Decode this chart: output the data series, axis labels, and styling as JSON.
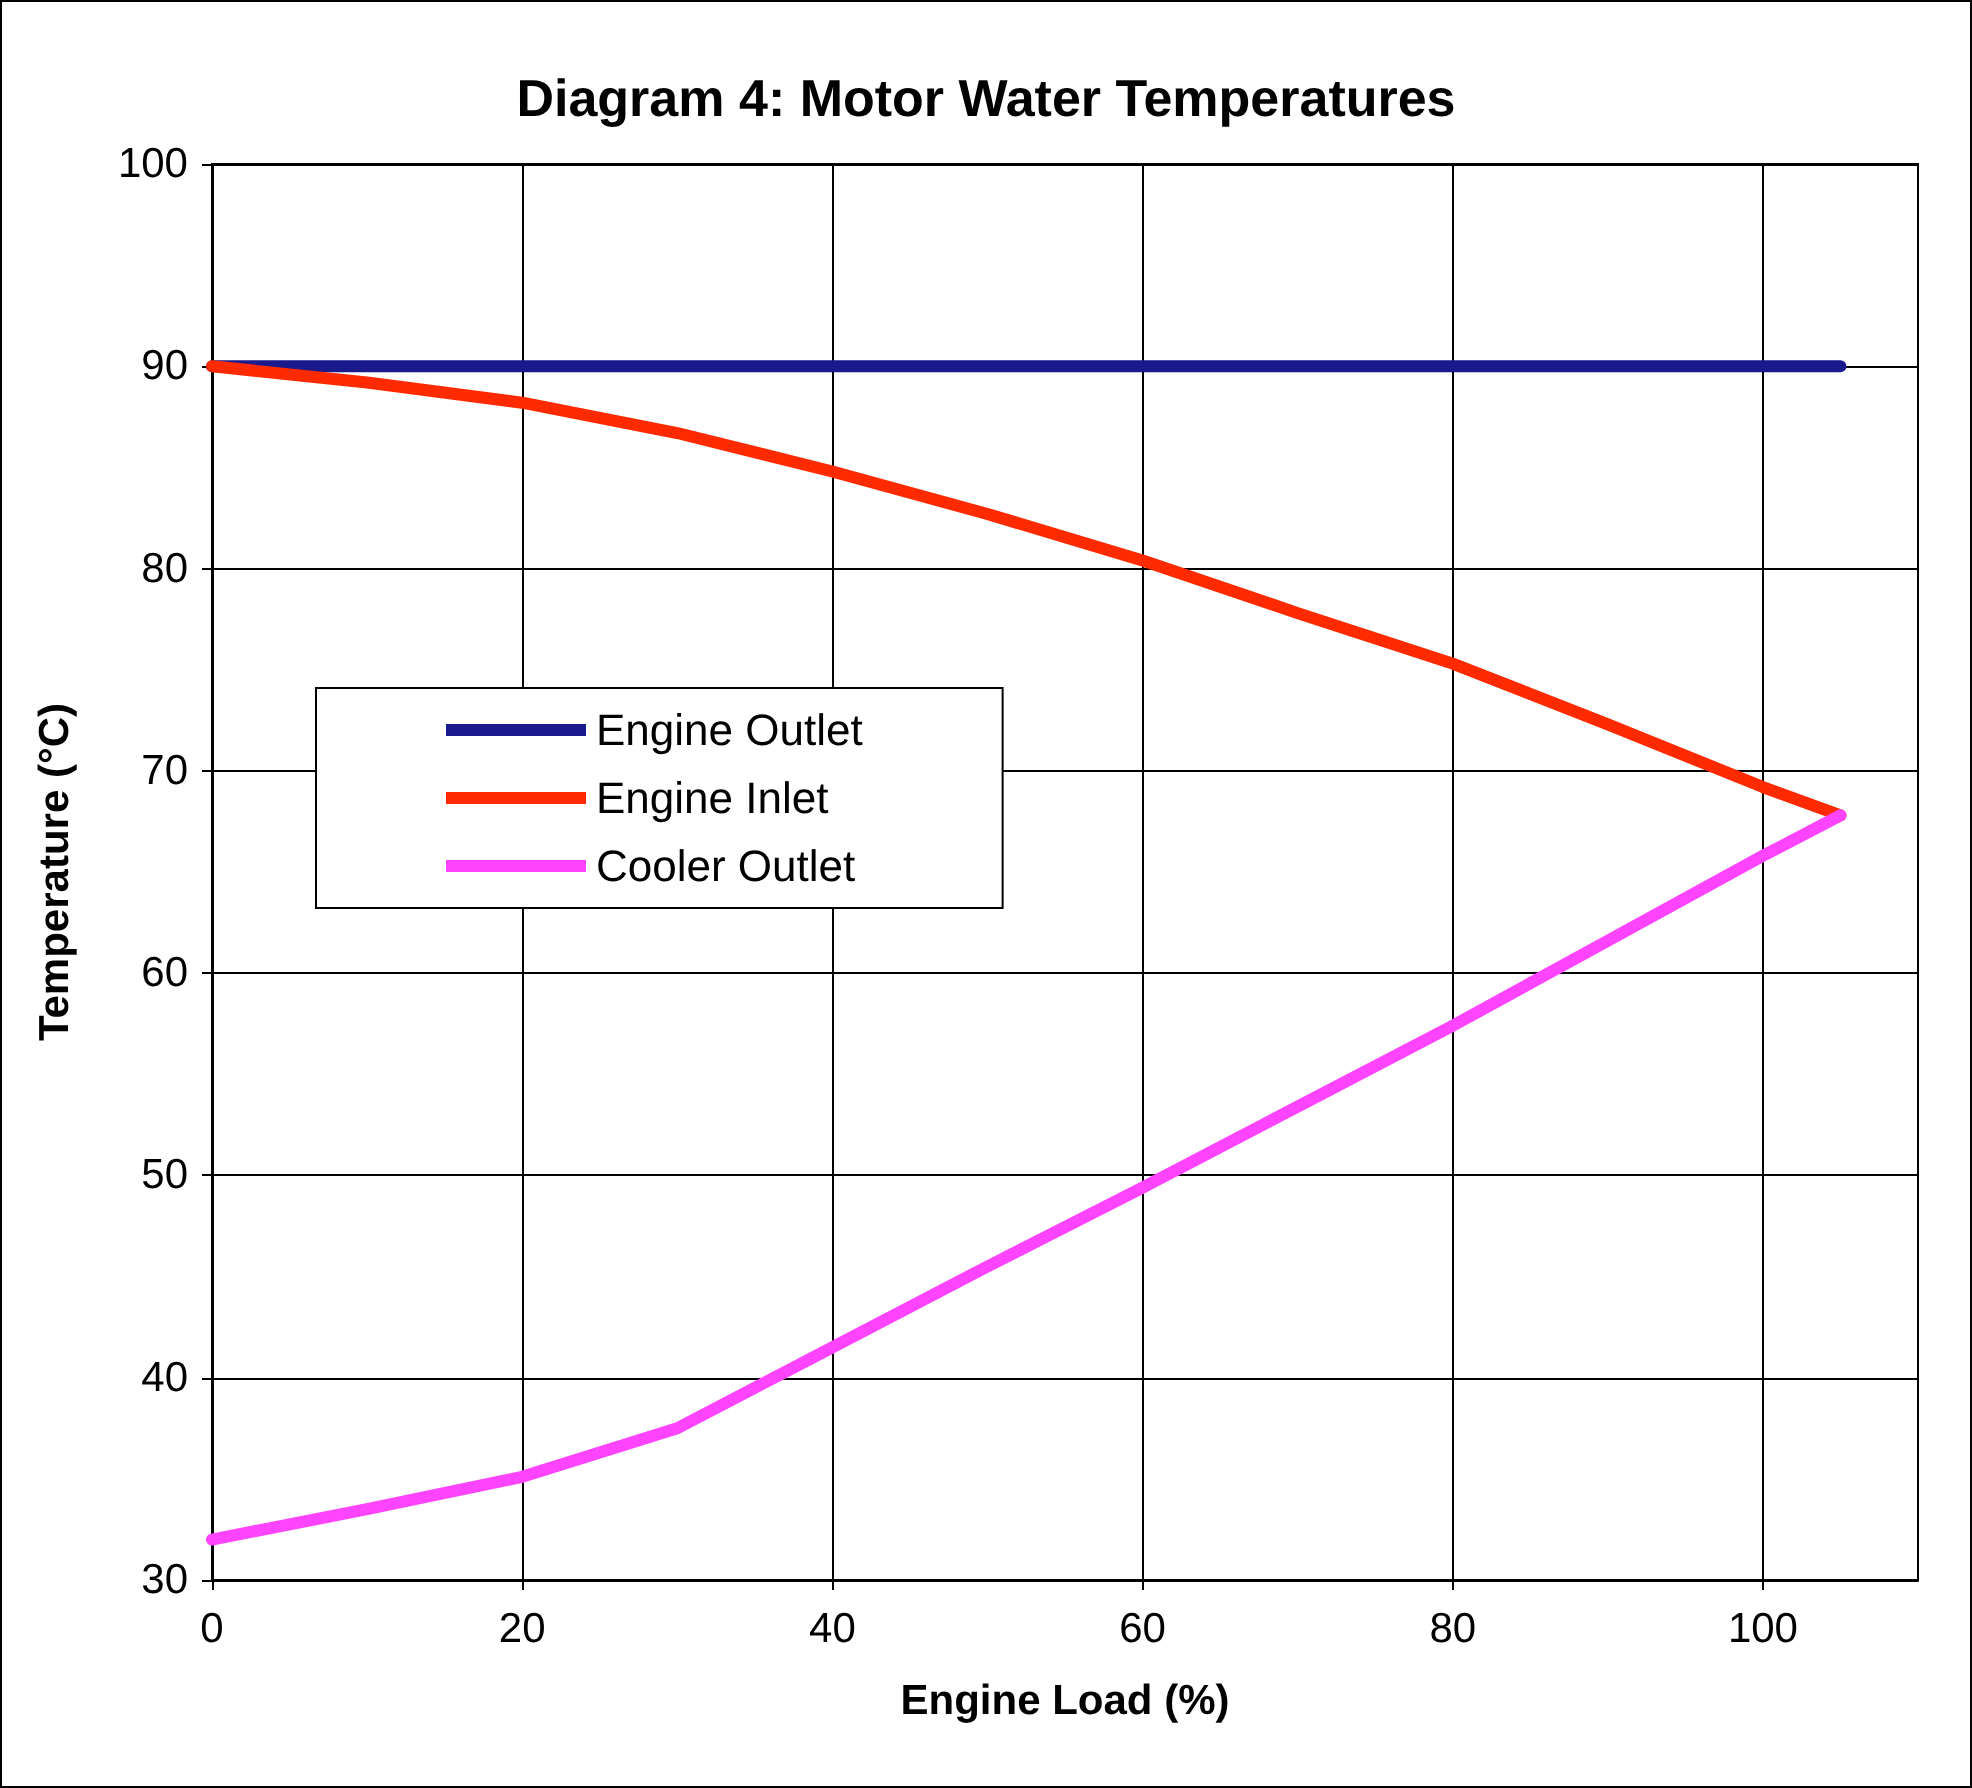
{
  "chart_data": {
    "type": "line",
    "title": "Diagram 4: Motor Water Temperatures",
    "xlabel": "Engine Load (%)",
    "ylabel": "Temperature (°C)",
    "x": [
      0,
      10,
      20,
      30,
      40,
      50,
      60,
      70,
      80,
      90,
      100,
      105
    ],
    "series": [
      {
        "name": "Engine Outlet",
        "color": "#1a1a8c",
        "values": [
          90,
          90,
          90,
          90,
          90,
          90,
          90,
          90,
          90,
          90,
          90,
          90
        ]
      },
      {
        "name": "Engine Inlet",
        "color": "#ff2a00",
        "values": [
          90,
          89.2,
          88.2,
          86.7,
          84.8,
          82.7,
          80.4,
          77.8,
          75.3,
          72.3,
          69.2,
          67.8
        ]
      },
      {
        "name": "Cooler Outlet",
        "color": "#ff44ff",
        "values": [
          32,
          33.5,
          35.1,
          37.5,
          41.5,
          45.5,
          49.4,
          53.4,
          57.4,
          61.6,
          65.8,
          67.8
        ]
      }
    ],
    "xlim": [
      0,
      110
    ],
    "xticks": [
      0,
      20,
      40,
      60,
      80,
      100
    ],
    "ylim": [
      30,
      100
    ],
    "yticks": [
      30,
      40,
      50,
      60,
      70,
      80,
      90,
      100
    ],
    "grid": true,
    "legend": "left",
    "marker": "none",
    "line_style": "solid"
  }
}
